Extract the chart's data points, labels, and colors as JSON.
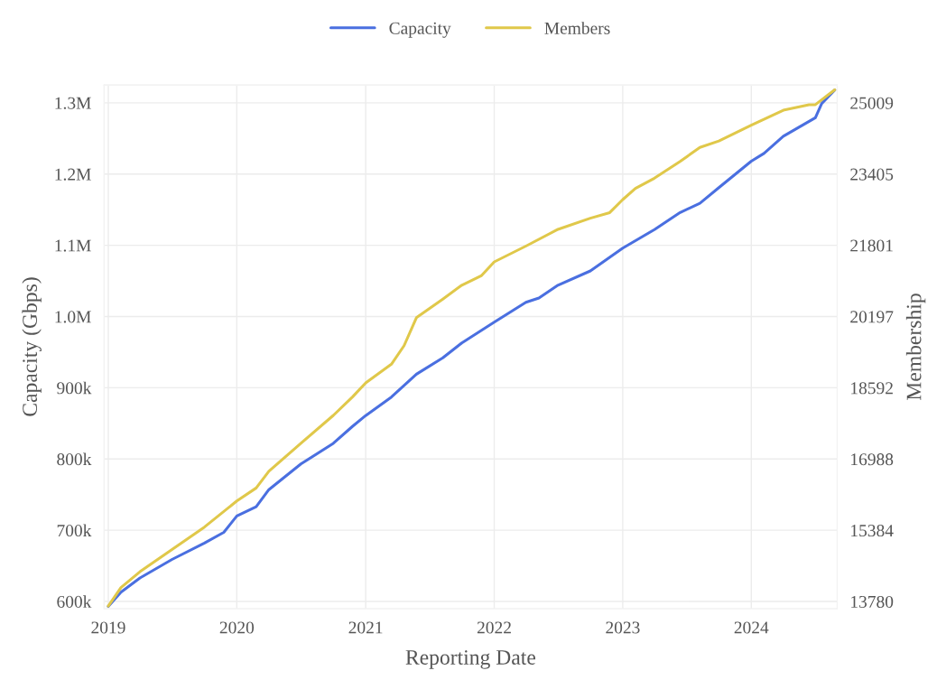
{
  "chart_data": {
    "type": "line",
    "xlabel": "Reporting Date",
    "ylabel": "Capacity (Gbps)",
    "y2label": "Membership",
    "legend": "top",
    "grid": true,
    "line_style": "solid",
    "xlim": [
      "2018-12-20",
      "2024-09-01"
    ],
    "xticks": [
      {
        "value": "2019-01-01",
        "label": "2019"
      },
      {
        "value": "2020-01-01",
        "label": "2020"
      },
      {
        "value": "2021-01-01",
        "label": "2021"
      },
      {
        "value": "2022-01-01",
        "label": "2022"
      },
      {
        "value": "2023-01-01",
        "label": "2023"
      },
      {
        "value": "2024-01-01",
        "label": "2024"
      }
    ],
    "ylim": [
      590000,
      1325000
    ],
    "yticks": [
      {
        "value": 600000,
        "label": "600k"
      },
      {
        "value": 700000,
        "label": "700k"
      },
      {
        "value": 800000,
        "label": "800k"
      },
      {
        "value": 900000,
        "label": "900k"
      },
      {
        "value": 1000000,
        "label": "1.0M"
      },
      {
        "value": 1100000,
        "label": "1.1M"
      },
      {
        "value": 1200000,
        "label": "1.2M"
      },
      {
        "value": 1300000,
        "label": "1.3M"
      }
    ],
    "y2lim": [
      13620,
      25410
    ],
    "y2ticks": [
      13780,
      15384,
      16988,
      18592,
      20197,
      21801,
      23405,
      25009
    ],
    "series": [
      {
        "name": "Capacity",
        "color": "#4a6fe0",
        "x": [
          "2019-01-01",
          "2019-02-06",
          "2019-04-01",
          "2019-07-01",
          "2019-10-01",
          "2019-11-25",
          "2020-01-01",
          "2020-02-25",
          "2020-04-01",
          "2020-07-01",
          "2020-10-01",
          "2020-11-25",
          "2021-01-01",
          "2021-03-15",
          "2021-05-25",
          "2021-08-08",
          "2021-10-01",
          "2022-01-01",
          "2022-04-01",
          "2022-05-08",
          "2022-07-01",
          "2022-10-01",
          "2023-01-01",
          "2023-04-01",
          "2023-06-13",
          "2023-08-08",
          "2023-10-01",
          "2024-01-01",
          "2024-02-06",
          "2024-04-01",
          "2024-07-01",
          "2024-07-19",
          "2024-08-25"
        ],
        "values": [
          593000,
          613000,
          633000,
          659000,
          682000,
          697000,
          720000,
          733000,
          757000,
          793000,
          822000,
          846000,
          861000,
          887000,
          919000,
          942000,
          963000,
          992000,
          1020000,
          1026000,
          1044000,
          1064000,
          1096000,
          1122000,
          1146000,
          1159000,
          1181000,
          1218000,
          1229000,
          1253000,
          1279000,
          1299000,
          1318000
        ]
      },
      {
        "name": "Members",
        "color": "#e0c84a",
        "axis": "y2",
        "x": [
          "2019-01-01",
          "2019-02-06",
          "2019-04-01",
          "2019-07-01",
          "2019-10-01",
          "2020-01-01",
          "2020-02-25",
          "2020-04-01",
          "2020-07-01",
          "2020-10-01",
          "2020-11-25",
          "2021-01-01",
          "2021-03-15",
          "2021-04-20",
          "2021-05-25",
          "2021-08-08",
          "2021-10-01",
          "2021-11-25",
          "2022-01-01",
          "2022-04-01",
          "2022-07-01",
          "2022-10-01",
          "2022-11-25",
          "2023-01-01",
          "2023-02-06",
          "2023-04-01",
          "2023-06-13",
          "2023-08-08",
          "2023-10-01",
          "2024-01-01",
          "2024-04-01",
          "2024-06-13",
          "2024-07-01",
          "2024-08-08",
          "2024-08-25"
        ],
        "values": [
          13675,
          14094,
          14450,
          14953,
          15456,
          16043,
          16336,
          16713,
          17342,
          17970,
          18389,
          18703,
          19122,
          19541,
          20170,
          20589,
          20903,
          21113,
          21427,
          21783,
          22160,
          22411,
          22537,
          22830,
          23082,
          23312,
          23689,
          24004,
          24150,
          24506,
          24842,
          24967,
          24967,
          25198,
          25302
        ]
      }
    ]
  }
}
